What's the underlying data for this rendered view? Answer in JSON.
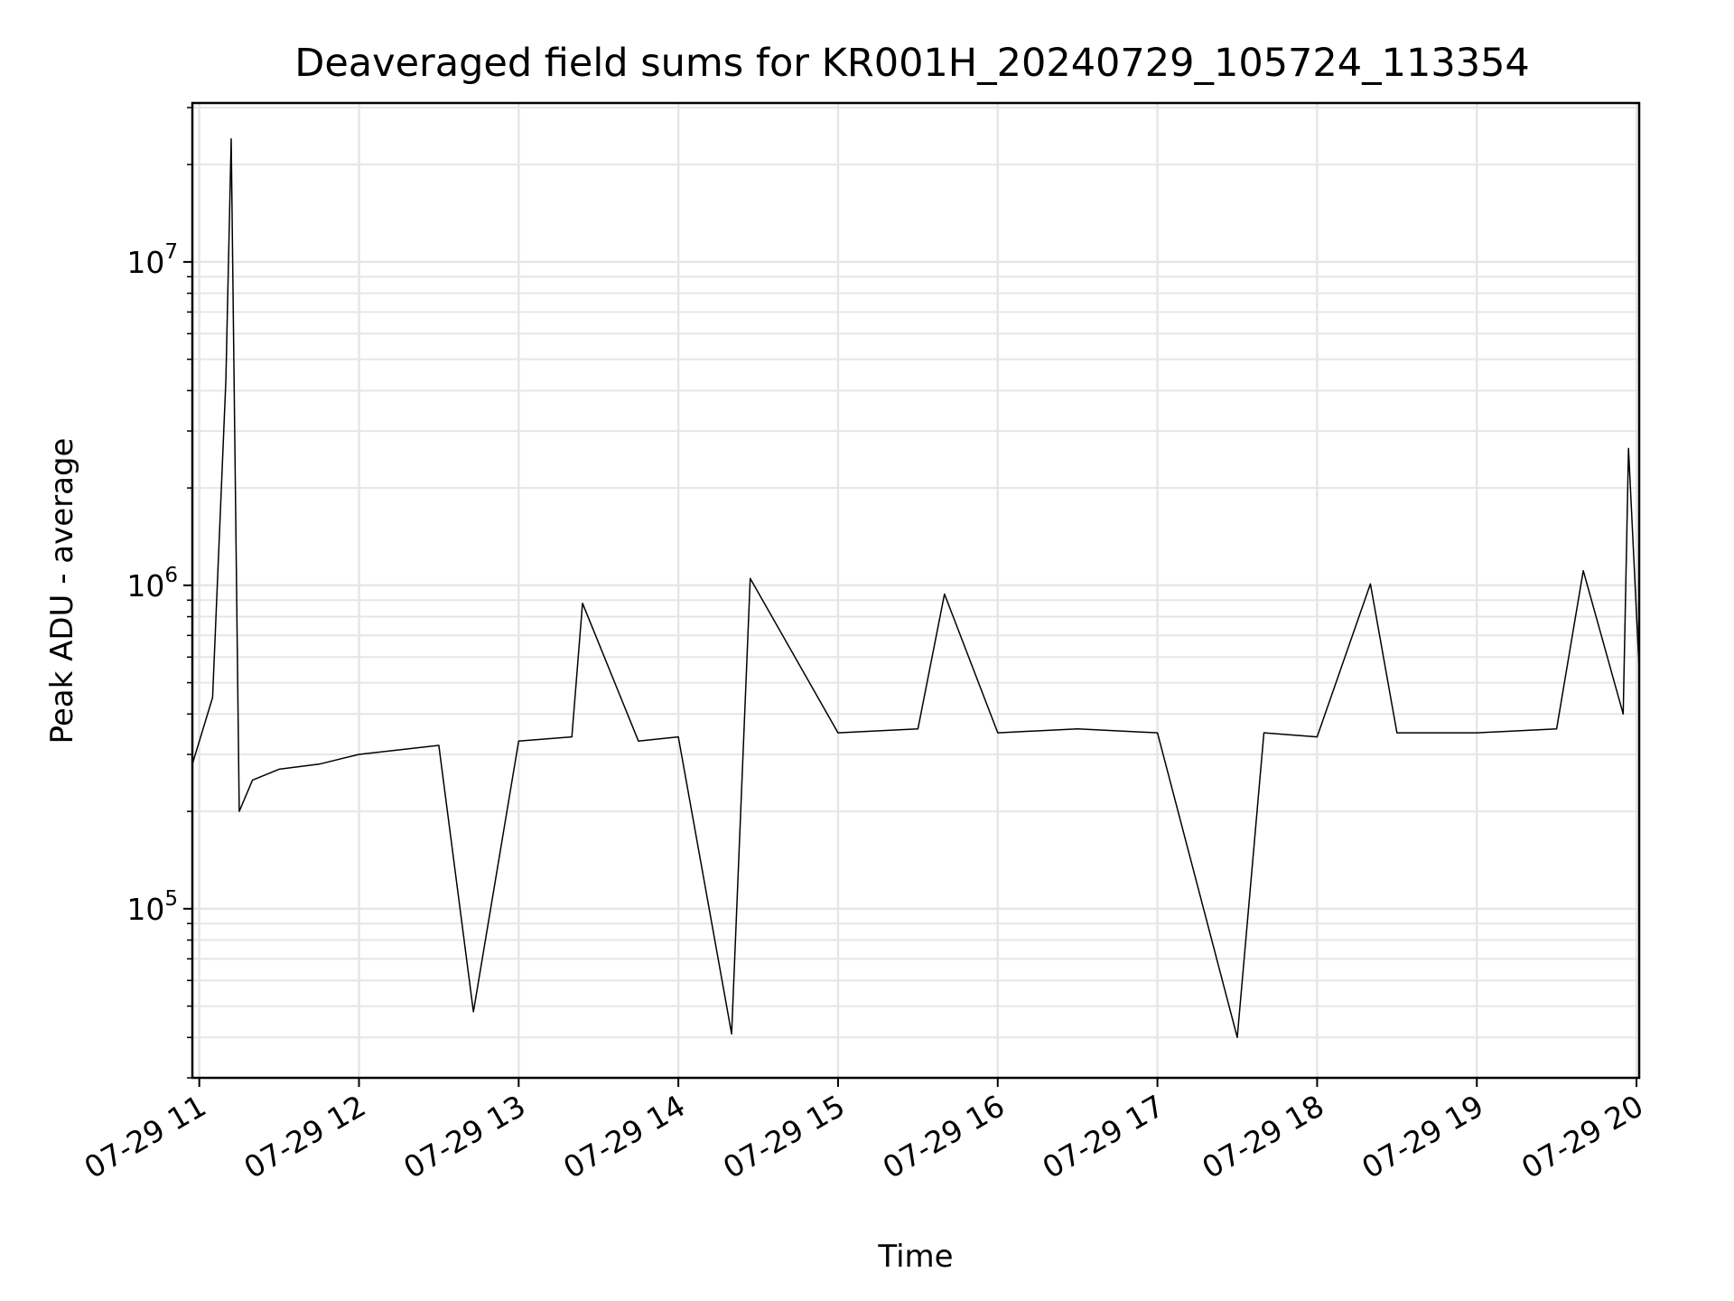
{
  "chart_data": {
    "type": "line",
    "title": "Deaveraged field sums for KR001H_20240729_105724_113354",
    "xlabel": "Time",
    "ylabel": "Peak ADU - average",
    "x_ticks": [
      "07-29 11",
      "07-29 12",
      "07-29 13",
      "07-29 14",
      "07-29 15",
      "07-29 16",
      "07-29 17",
      "07-29 18",
      "07-29 19",
      "07-29 20"
    ],
    "y_ticks": [
      {
        "base": "10",
        "exp": "5",
        "value": 100000
      },
      {
        "base": "10",
        "exp": "6",
        "value": 1000000
      },
      {
        "base": "10",
        "exp": "7",
        "value": 10000000
      }
    ],
    "xlim": [
      "2024-07-29T10:57:24",
      "2024-07-29T20:01:00"
    ],
    "ylim": [
      30000,
      31000000
    ],
    "yscale": "log",
    "grid": true,
    "line_color": "#000000",
    "grid_color": "#e6e6e6",
    "series": [
      {
        "x": [
          "2024-07-29T10:57:24",
          "2024-07-29T11:05:00",
          "2024-07-29T11:10:00",
          "2024-07-29T11:12:00",
          "2024-07-29T11:15:00",
          "2024-07-29T11:20:00",
          "2024-07-29T11:30:00",
          "2024-07-29T11:45:00",
          "2024-07-29T12:00:00",
          "2024-07-29T12:30:00",
          "2024-07-29T12:43:00",
          "2024-07-29T13:00:00",
          "2024-07-29T13:20:00",
          "2024-07-29T13:24:00",
          "2024-07-29T13:45:00",
          "2024-07-29T14:00:00",
          "2024-07-29T14:20:00",
          "2024-07-29T14:27:00",
          "2024-07-29T15:00:00",
          "2024-07-29T15:30:00",
          "2024-07-29T15:40:00",
          "2024-07-29T16:00:00",
          "2024-07-29T16:30:00",
          "2024-07-29T17:00:00",
          "2024-07-29T17:30:00",
          "2024-07-29T17:40:00",
          "2024-07-29T18:00:00",
          "2024-07-29T18:20:00",
          "2024-07-29T18:30:00",
          "2024-07-29T19:00:00",
          "2024-07-29T19:30:00",
          "2024-07-29T19:40:00",
          "2024-07-29T19:55:00",
          "2024-07-29T19:57:00",
          "2024-07-29T20:01:00"
        ],
        "y": [
          280000,
          450000,
          4300000,
          24000000,
          200000,
          250000,
          270000,
          280000,
          300000,
          320000,
          48000,
          330000,
          340000,
          880000,
          330000,
          340000,
          41000,
          1050000,
          350000,
          360000,
          940000,
          350000,
          360000,
          350000,
          40000,
          350000,
          340000,
          1010000,
          350000,
          350000,
          360000,
          1110000,
          400000,
          2650000,
          550000
        ]
      }
    ]
  }
}
